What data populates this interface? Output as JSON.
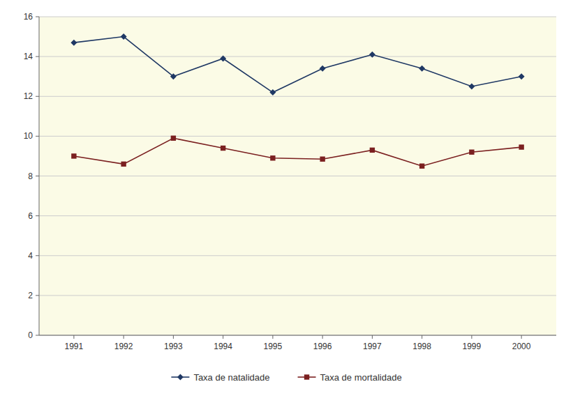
{
  "chart_data": {
    "type": "line",
    "x": [
      1991,
      1992,
      1993,
      1994,
      1995,
      1996,
      1997,
      1998,
      1999,
      2000
    ],
    "xlim": [
      1990.3,
      2000.7
    ],
    "xticks": [
      1991,
      1992,
      1993,
      1994,
      1995,
      1996,
      1997,
      1998,
      1999,
      2000
    ],
    "ylim": [
      0,
      16
    ],
    "yticks": [
      0,
      2,
      4,
      6,
      8,
      10,
      12,
      14,
      16
    ],
    "grid": true,
    "legend": "bottom",
    "series": [
      {
        "name": "Taxa de natalidade",
        "color": "#1F3864",
        "marker": "diamond",
        "values": [
          14.7,
          15.0,
          13.0,
          13.9,
          12.2,
          13.4,
          14.1,
          13.4,
          12.5,
          13.0
        ]
      },
      {
        "name": "Taxa de mortalidade",
        "color": "#7B2020",
        "marker": "square",
        "values": [
          9.0,
          8.6,
          9.9,
          9.4,
          8.9,
          8.85,
          9.3,
          8.5,
          9.2,
          9.45
        ]
      }
    ]
  }
}
